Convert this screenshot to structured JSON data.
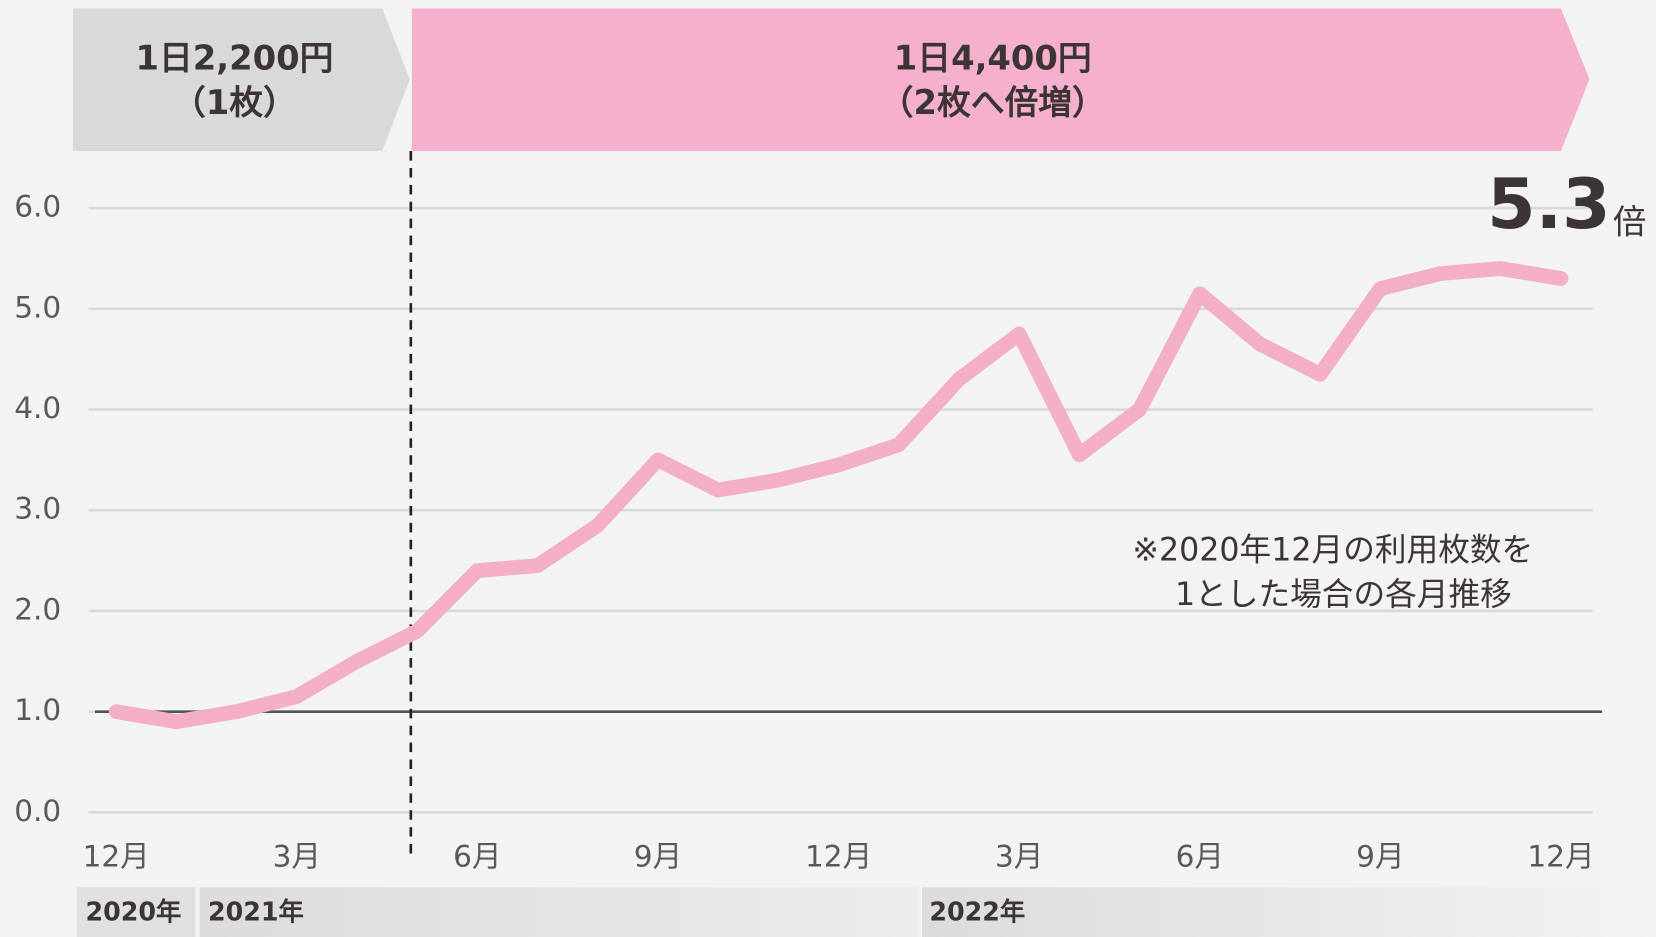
{
  "chart_data": {
    "type": "line",
    "phases": [
      {
        "label": "1日2,200円",
        "sublabel": "（1枚）"
      },
      {
        "label": "1日4,400円",
        "sublabel": "（2枚へ倍増）"
      }
    ],
    "categories": [
      "12月",
      null,
      null,
      "3月",
      null,
      null,
      "6月",
      null,
      null,
      "9月",
      null,
      null,
      "12月",
      null,
      null,
      "3月",
      null,
      null,
      "6月",
      null,
      null,
      "9月",
      null,
      null,
      "12月"
    ],
    "year_labels": [
      "2020年",
      "2021年",
      "2022年"
    ],
    "series": [
      {
        "name": "利用枚数",
        "color": "#f4afc8",
        "values": [
          1.0,
          0.9,
          1.0,
          1.15,
          1.5,
          1.8,
          2.4,
          2.45,
          2.85,
          3.5,
          3.2,
          3.3,
          3.45,
          3.65,
          4.3,
          4.75,
          3.55,
          4.0,
          5.15,
          4.65,
          4.35,
          5.2,
          5.35,
          5.4,
          5.3
        ]
      }
    ],
    "end_label_unit": "倍",
    "annotation": [
      "※2020年12月の利用枚数を",
      "1とした場合の各月推移"
    ],
    "ylim": [
      0,
      6
    ],
    "yticks": [
      {
        "value": 0,
        "label": "0.0"
      },
      {
        "value": 1,
        "label": "1.0"
      },
      {
        "value": 2,
        "label": "2.0"
      },
      {
        "value": 3,
        "label": "3.0"
      },
      {
        "value": 4,
        "label": "4.0"
      },
      {
        "value": 5,
        "label": "5.0"
      },
      {
        "value": 6,
        "label": "6.0"
      }
    ],
    "baseline": 1,
    "grid": true
  }
}
